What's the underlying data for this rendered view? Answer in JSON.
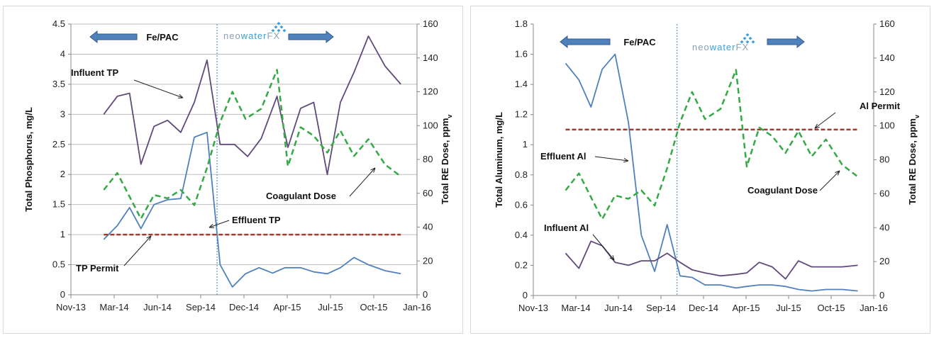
{
  "colors": {
    "series_blue": "#4f81bd",
    "series_purple": "#604a7b",
    "dose_green": "#33aa44",
    "permit_red": "#a33a2e",
    "arrow_blue": "#4f81bd",
    "grid": "#bfbfbf",
    "divider": "#4f81bd",
    "logo_blue": "#3aa0d8",
    "logo_gray": "#8aa0b4"
  },
  "logo": {
    "neo": "neo",
    "water": "water",
    "fx": "FX"
  },
  "chart_data": [
    {
      "type": "line",
      "x_axis_type": "date",
      "x_ticks": [
        "Nov-13",
        "Mar-14",
        "Jun-14",
        "Sep-14",
        "Dec-14",
        "Apr-15",
        "Jul-15",
        "Oct-15",
        "Jan-16"
      ],
      "x_range": [
        "2013-11-01",
        "2016-01-01"
      ],
      "ylabel": "Total Phosphorus, mg/L",
      "ylim": [
        0,
        4.5
      ],
      "yticks": [
        "0",
        "0.5",
        "1",
        "1.5",
        "2",
        "2.5",
        "3",
        "3.5",
        "4",
        "4.5"
      ],
      "y2label": "Total RE Dose, ppm",
      "y2label_sub": "v",
      "y2lim": [
        0,
        160
      ],
      "y2ticks": [
        "0",
        "20",
        "40",
        "60",
        "80",
        "100",
        "120",
        "140",
        "160"
      ],
      "grid": "horizontal",
      "divider_date": "2014-10-01",
      "regime_labels": {
        "left": "Fe/PAC"
      },
      "annotations": [
        {
          "text": "Influent TP",
          "series": "influent"
        },
        {
          "text": "Effluent TP",
          "series": "effluent"
        },
        {
          "text": "TP Permit",
          "series": "permit"
        },
        {
          "text": "Coagulant Dose",
          "series": "dose"
        }
      ],
      "series": [
        {
          "id": "influent",
          "axis": "left",
          "style": "solid",
          "color": "#604a7b",
          "points": [
            [
              "2014-01-15",
              3.0
            ],
            [
              "2014-02-15",
              3.3
            ],
            [
              "2014-03-15",
              3.35
            ],
            [
              "2014-04-10",
              2.17
            ],
            [
              "2014-05-10",
              2.8
            ],
            [
              "2014-06-10",
              2.9
            ],
            [
              "2014-07-10",
              2.7
            ],
            [
              "2014-08-10",
              3.2
            ],
            [
              "2014-09-08",
              3.9
            ],
            [
              "2014-10-08",
              2.5
            ],
            [
              "2014-11-10",
              2.5
            ],
            [
              "2014-12-10",
              2.3
            ],
            [
              "2015-01-10",
              2.6
            ],
            [
              "2015-02-15",
              3.3
            ],
            [
              "2015-03-12",
              2.45
            ],
            [
              "2015-04-10",
              3.1
            ],
            [
              "2015-05-10",
              3.2
            ],
            [
              "2015-06-10",
              2.0
            ],
            [
              "2015-07-10",
              3.2
            ],
            [
              "2015-08-10",
              3.7
            ],
            [
              "2015-09-12",
              4.3
            ],
            [
              "2015-10-20",
              3.8
            ],
            [
              "2015-11-25",
              3.5
            ]
          ]
        },
        {
          "id": "effluent",
          "axis": "left",
          "style": "solid",
          "color": "#4f81bd",
          "points": [
            [
              "2014-01-15",
              0.92
            ],
            [
              "2014-02-15",
              1.15
            ],
            [
              "2014-03-15",
              1.45
            ],
            [
              "2014-04-10",
              1.1
            ],
            [
              "2014-05-10",
              1.5
            ],
            [
              "2014-06-10",
              1.58
            ],
            [
              "2014-07-10",
              1.6
            ],
            [
              "2014-08-10",
              2.62
            ],
            [
              "2014-09-08",
              2.7
            ],
            [
              "2014-10-08",
              0.5
            ],
            [
              "2014-11-05",
              0.13
            ],
            [
              "2014-12-05",
              0.35
            ],
            [
              "2015-01-05",
              0.45
            ],
            [
              "2015-02-05",
              0.36
            ],
            [
              "2015-03-05",
              0.45
            ],
            [
              "2015-04-10",
              0.45
            ],
            [
              "2015-05-10",
              0.38
            ],
            [
              "2015-06-10",
              0.35
            ],
            [
              "2015-07-10",
              0.45
            ],
            [
              "2015-08-10",
              0.62
            ],
            [
              "2015-09-12",
              0.5
            ],
            [
              "2015-10-20",
              0.4
            ],
            [
              "2015-11-25",
              0.35
            ]
          ]
        },
        {
          "id": "permit",
          "axis": "left",
          "style": "dashed",
          "color": "#a33a2e",
          "points": [
            [
              "2014-01-15",
              1.0
            ],
            [
              "2015-11-25",
              1.0
            ]
          ]
        },
        {
          "id": "dose",
          "axis": "right",
          "style": "dashed",
          "color": "#33aa44",
          "points": [
            [
              "2014-01-15",
              62
            ],
            [
              "2014-02-15",
              72
            ],
            [
              "2014-03-15",
              58
            ],
            [
              "2014-04-10",
              45
            ],
            [
              "2014-05-10",
              59
            ],
            [
              "2014-06-10",
              57
            ],
            [
              "2014-07-10",
              62
            ],
            [
              "2014-08-10",
              53
            ],
            [
              "2014-09-08",
              75
            ],
            [
              "2014-10-08",
              102
            ],
            [
              "2014-11-05",
              120
            ],
            [
              "2014-12-05",
              104
            ],
            [
              "2015-01-10",
              110
            ],
            [
              "2015-02-15",
              133
            ],
            [
              "2015-03-12",
              76
            ],
            [
              "2015-04-10",
              99
            ],
            [
              "2015-05-10",
              94
            ],
            [
              "2015-06-10",
              84
            ],
            [
              "2015-07-10",
              97
            ],
            [
              "2015-08-10",
              82
            ],
            [
              "2015-09-12",
              92
            ],
            [
              "2015-10-20",
              77
            ],
            [
              "2015-11-25",
              70
            ]
          ]
        }
      ]
    },
    {
      "type": "line",
      "x_axis_type": "date",
      "x_ticks": [
        "Nov-13",
        "Mar-14",
        "Jun-14",
        "Sep-14",
        "Dec-14",
        "Apr-15",
        "Jul-15",
        "Oct-15",
        "Jan-16"
      ],
      "x_range": [
        "2013-11-01",
        "2016-01-01"
      ],
      "ylabel": "Total Aluminum, mg/L",
      "ylim": [
        0,
        1.8
      ],
      "yticks": [
        "0",
        "0.2",
        "0.4",
        "0.6",
        "0.8",
        "1",
        "1.2",
        "1.4",
        "1.6",
        "1.8"
      ],
      "y2label": "Total RE Dose, ppm",
      "y2label_sub": "v",
      "y2lim": [
        0,
        160
      ],
      "y2ticks": [
        "0",
        "20",
        "40",
        "60",
        "80",
        "100",
        "120",
        "140",
        "160"
      ],
      "grid": "none",
      "divider_date": "2014-10-01",
      "regime_labels": {
        "left": "Fe/PAC"
      },
      "annotations": [
        {
          "text": "Effluent Al",
          "series": "effluent"
        },
        {
          "text": "Influent Al",
          "series": "influent"
        },
        {
          "text": "Al Permit",
          "series": "permit"
        },
        {
          "text": "Coagulant Dose",
          "series": "dose"
        }
      ],
      "series": [
        {
          "id": "effluent",
          "axis": "left",
          "style": "solid",
          "color": "#4f81bd",
          "points": [
            [
              "2014-01-15",
              1.54
            ],
            [
              "2014-02-15",
              1.43
            ],
            [
              "2014-03-15",
              1.25
            ],
            [
              "2014-04-10",
              1.5
            ],
            [
              "2014-05-10",
              1.6
            ],
            [
              "2014-06-10",
              1.15
            ],
            [
              "2014-07-10",
              0.4
            ],
            [
              "2014-08-10",
              0.16
            ],
            [
              "2014-09-08",
              0.47
            ],
            [
              "2014-10-08",
              0.13
            ],
            [
              "2014-11-05",
              0.12
            ],
            [
              "2014-12-05",
              0.07
            ],
            [
              "2015-01-10",
              0.07
            ],
            [
              "2015-02-15",
              0.05
            ],
            [
              "2015-03-12",
              0.06
            ],
            [
              "2015-04-10",
              0.07
            ],
            [
              "2015-05-10",
              0.07
            ],
            [
              "2015-06-10",
              0.06
            ],
            [
              "2015-07-10",
              0.04
            ],
            [
              "2015-08-10",
              0.03
            ],
            [
              "2015-09-12",
              0.04
            ],
            [
              "2015-10-20",
              0.04
            ],
            [
              "2015-11-25",
              0.03
            ]
          ]
        },
        {
          "id": "influent",
          "axis": "left",
          "style": "solid",
          "color": "#604a7b",
          "points": [
            [
              "2014-01-15",
              0.28
            ],
            [
              "2014-02-15",
              0.18
            ],
            [
              "2014-03-15",
              0.36
            ],
            [
              "2014-04-10",
              0.33
            ],
            [
              "2014-05-10",
              0.22
            ],
            [
              "2014-06-10",
              0.2
            ],
            [
              "2014-07-10",
              0.23
            ],
            [
              "2014-08-10",
              0.23
            ],
            [
              "2014-09-08",
              0.28
            ],
            [
              "2014-10-08",
              0.22
            ],
            [
              "2014-11-05",
              0.17
            ],
            [
              "2014-12-05",
              0.15
            ],
            [
              "2015-01-10",
              0.13
            ],
            [
              "2015-02-15",
              0.14
            ],
            [
              "2015-03-12",
              0.15
            ],
            [
              "2015-04-10",
              0.22
            ],
            [
              "2015-05-10",
              0.19
            ],
            [
              "2015-06-10",
              0.11
            ],
            [
              "2015-07-10",
              0.23
            ],
            [
              "2015-08-10",
              0.19
            ],
            [
              "2015-09-12",
              0.19
            ],
            [
              "2015-10-20",
              0.19
            ],
            [
              "2015-11-25",
              0.2
            ]
          ]
        },
        {
          "id": "permit",
          "axis": "left",
          "style": "dashed",
          "color": "#a33a2e",
          "points": [
            [
              "2014-01-15",
              1.1
            ],
            [
              "2015-11-25",
              1.1
            ]
          ]
        },
        {
          "id": "dose",
          "axis": "right",
          "style": "dashed",
          "color": "#33aa44",
          "points": [
            [
              "2014-01-15",
              62
            ],
            [
              "2014-02-15",
              72
            ],
            [
              "2014-03-15",
              58
            ],
            [
              "2014-04-10",
              45
            ],
            [
              "2014-05-10",
              59
            ],
            [
              "2014-06-10",
              57
            ],
            [
              "2014-07-10",
              62
            ],
            [
              "2014-08-10",
              53
            ],
            [
              "2014-09-08",
              75
            ],
            [
              "2014-10-08",
              102
            ],
            [
              "2014-11-05",
              120
            ],
            [
              "2014-12-05",
              104
            ],
            [
              "2015-01-10",
              110
            ],
            [
              "2015-02-15",
              133
            ],
            [
              "2015-03-12",
              76
            ],
            [
              "2015-04-10",
              99
            ],
            [
              "2015-05-10",
              94
            ],
            [
              "2015-06-10",
              84
            ],
            [
              "2015-07-10",
              97
            ],
            [
              "2015-08-10",
              82
            ],
            [
              "2015-09-12",
              92
            ],
            [
              "2015-10-20",
              77
            ],
            [
              "2015-11-25",
              70
            ]
          ]
        }
      ]
    }
  ]
}
